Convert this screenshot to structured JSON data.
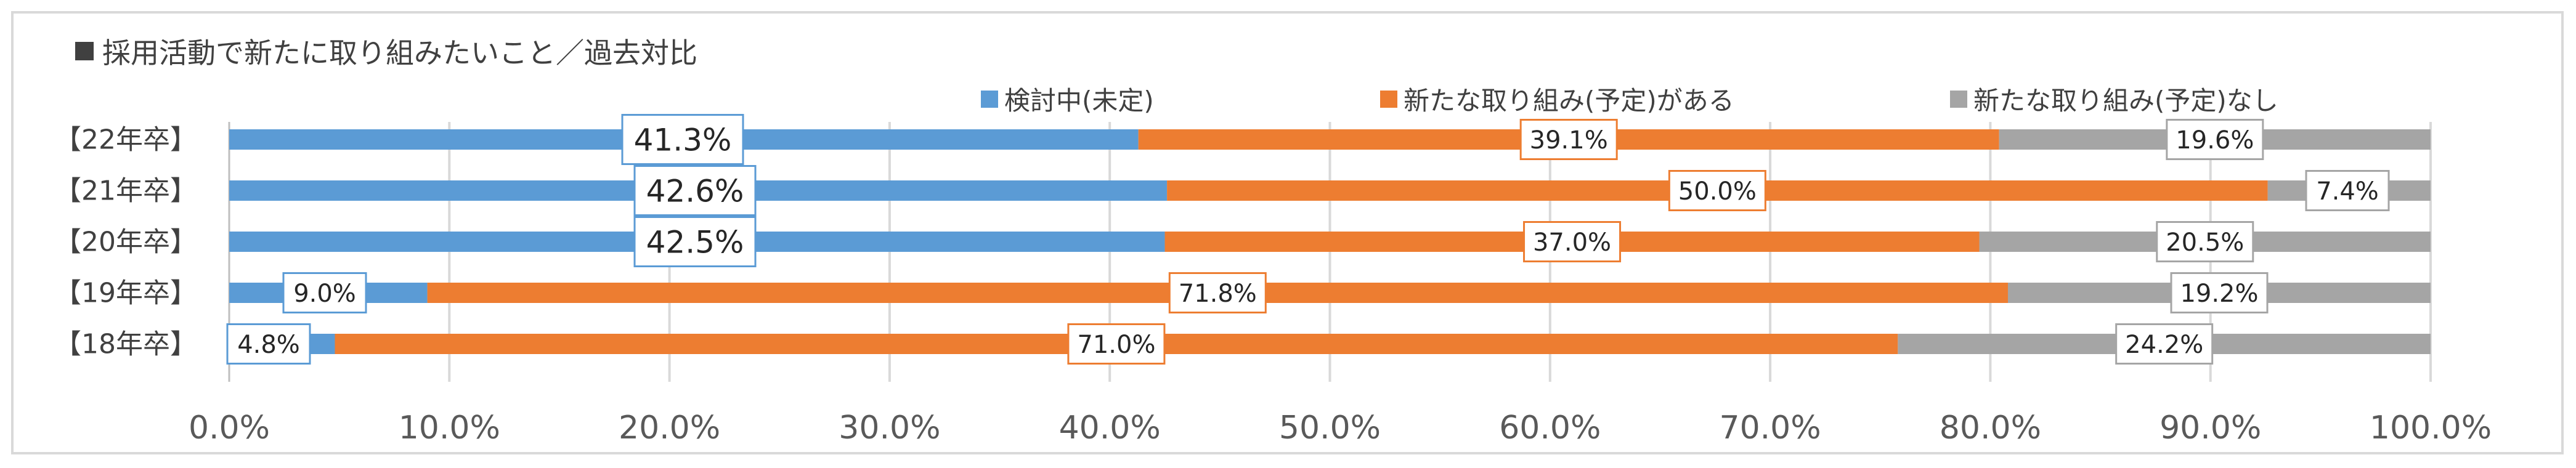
{
  "title": "採用活動で新たに取り組みたいこと／過去対比",
  "legend": [
    {
      "label": "検討中(未定)",
      "color": "#5b9bd5"
    },
    {
      "label": "新たな取り組み(予定)がある",
      "color": "#ed7d31"
    },
    {
      "label": "新たな取り組み(予定)なし",
      "color": "#a5a5a5"
    }
  ],
  "chart_data": {
    "type": "bar",
    "orientation": "horizontal",
    "stacked": true,
    "categories": [
      "【22年卒】",
      "【21年卒】",
      "【20年卒】",
      "【19年卒】",
      "【18年卒】"
    ],
    "series": [
      {
        "name": "検討中(未定)",
        "color": "#5b9bd5",
        "values": [
          41.3,
          42.6,
          42.5,
          9.0,
          4.8
        ],
        "labels": [
          "41.3%",
          "42.6%",
          "42.5%",
          "9.0%",
          "4.8%"
        ]
      },
      {
        "name": "新たな取り組み(予定)がある",
        "color": "#ed7d31",
        "values": [
          39.1,
          50.0,
          37.0,
          71.8,
          71.0
        ],
        "labels": [
          "39.1%",
          "50.0%",
          "37.0%",
          "71.8%",
          "71.0%"
        ]
      },
      {
        "name": "新たな取り組み(予定)なし",
        "color": "#a5a5a5",
        "values": [
          19.6,
          7.4,
          20.5,
          19.2,
          24.2
        ],
        "labels": [
          "19.6%",
          "7.4%",
          "20.5%",
          "19.2%",
          "24.2%"
        ]
      }
    ],
    "xlim": [
      0,
      100
    ],
    "xticks": [
      0,
      10,
      20,
      30,
      40,
      50,
      60,
      70,
      80,
      90,
      100
    ],
    "xtick_labels": [
      "0.0%",
      "10.0%",
      "20.0%",
      "30.0%",
      "40.0%",
      "50.0%",
      "60.0%",
      "70.0%",
      "80.0%",
      "90.0%",
      "100.0%"
    ],
    "grid": true,
    "legend_position": "top"
  }
}
